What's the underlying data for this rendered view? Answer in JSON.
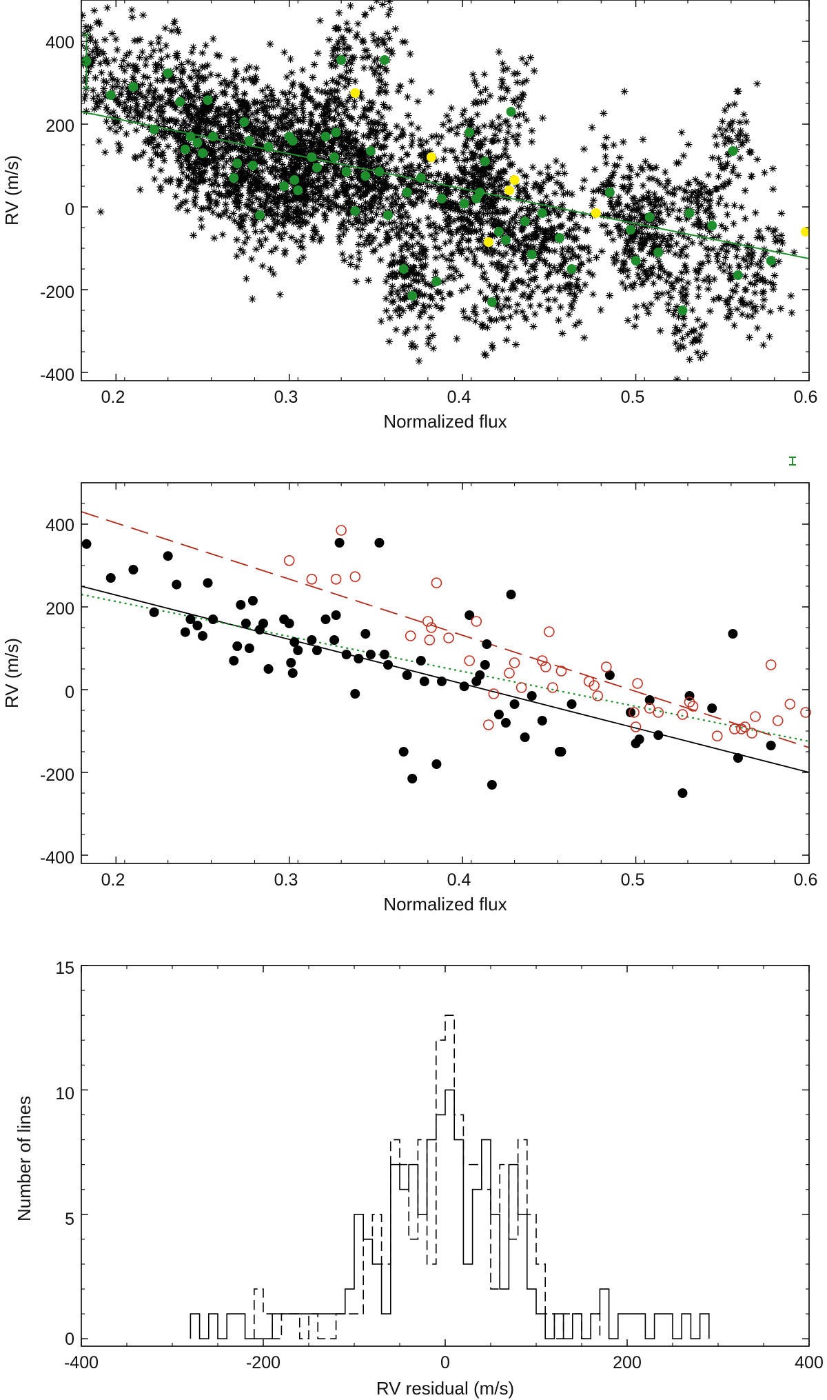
{
  "chart_data": [
    {
      "id": "top",
      "type": "scatter",
      "xlabel": "Normalized flux",
      "ylabel": "RV (m/s)",
      "xlim": [
        0.18,
        0.6
      ],
      "ylim": [
        -420,
        500
      ],
      "xticks": [
        0.2,
        0.3,
        0.4,
        0.5,
        0.6
      ],
      "xtick_labels": [
        "0.2",
        "0.3",
        "0.4",
        "0.5",
        "0.6"
      ],
      "yticks": [
        -400,
        -200,
        0,
        200,
        400
      ],
      "ytick_labels": [
        "-400",
        "-200",
        "0",
        "200",
        "400"
      ],
      "series": [
        {
          "name": "individual lines (asterisks)",
          "marker": "asterisk",
          "color": "#000000",
          "note": "dense cloud of several thousand points following the fitted trend",
          "count_estimate": 4000
        },
        {
          "name": "binned lines",
          "marker": "filled-circle",
          "color": "#1f8f2e",
          "x": [
            0.183,
            0.197,
            0.21,
            0.222,
            0.23,
            0.237,
            0.24,
            0.243,
            0.247,
            0.25,
            0.253,
            0.256,
            0.268,
            0.27,
            0.274,
            0.277,
            0.279,
            0.283,
            0.288,
            0.297,
            0.3,
            0.302,
            0.303,
            0.305,
            0.313,
            0.316,
            0.321,
            0.326,
            0.327,
            0.33,
            0.333,
            0.338,
            0.344,
            0.347,
            0.352,
            0.355,
            0.357,
            0.366,
            0.368,
            0.371,
            0.376,
            0.385,
            0.388,
            0.401,
            0.404,
            0.408,
            0.41,
            0.413,
            0.417,
            0.421,
            0.425,
            0.428,
            0.436,
            0.44,
            0.446,
            0.456,
            0.463,
            0.485,
            0.497,
            0.5,
            0.508,
            0.513,
            0.527,
            0.531,
            0.544,
            0.556,
            0.559,
            0.578
          ],
          "y": [
            352,
            270,
            290,
            187,
            323,
            254,
            139,
            170,
            155,
            130,
            258,
            170,
            70,
            105,
            205,
            160,
            100,
            -20,
            145,
            50,
            170,
            160,
            65,
            40,
            120,
            95,
            170,
            120,
            180,
            355,
            85,
            -10,
            75,
            135,
            85,
            355,
            -20,
            -150,
            35,
            -215,
            70,
            -180,
            20,
            8,
            180,
            20,
            35,
            110,
            -230,
            -60,
            -80,
            230,
            -35,
            -115,
            -15,
            -75,
            -150,
            35,
            -55,
            -130,
            -25,
            -110,
            -250,
            -15,
            -45,
            135,
            -165,
            -130
          ]
        },
        {
          "name": "highlighted lines",
          "marker": "filled-circle",
          "color": "#ffee00",
          "x": [
            0.338,
            0.382,
            0.415,
            0.427,
            0.43,
            0.477,
            0.598
          ],
          "y": [
            275,
            120,
            -85,
            40,
            65,
            -15,
            -60
          ]
        },
        {
          "name": "linear fit",
          "type": "line",
          "color": "#1f8f2e",
          "x": [
            0.18,
            0.6
          ],
          "y": [
            230,
            -125
          ]
        }
      ],
      "error_bar": {
        "color": "#1f8f2e",
        "x": 0.183,
        "y": 352,
        "yerr": 65
      }
    },
    {
      "id": "middle",
      "type": "scatter",
      "xlabel": "Normalized flux",
      "ylabel": "RV (m/s)",
      "xlim": [
        0.18,
        0.6
      ],
      "ylim": [
        -420,
        500
      ],
      "xticks": [
        0.2,
        0.3,
        0.4,
        0.5,
        0.6
      ],
      "xtick_labels": [
        "0.2",
        "0.3",
        "0.4",
        "0.5",
        "0.6"
      ],
      "yticks": [
        -400,
        -200,
        0,
        200,
        400
      ],
      "ytick_labels": [
        "-400",
        "-200",
        "0",
        "200",
        "400"
      ],
      "series": [
        {
          "name": "filled points",
          "marker": "filled-circle",
          "color": "#000000",
          "x": [
            0.183,
            0.197,
            0.21,
            0.222,
            0.23,
            0.235,
            0.24,
            0.243,
            0.247,
            0.25,
            0.253,
            0.256,
            0.268,
            0.27,
            0.272,
            0.275,
            0.277,
            0.279,
            0.283,
            0.285,
            0.288,
            0.297,
            0.3,
            0.301,
            0.302,
            0.303,
            0.305,
            0.313,
            0.316,
            0.321,
            0.326,
            0.327,
            0.329,
            0.333,
            0.338,
            0.34,
            0.344,
            0.347,
            0.352,
            0.355,
            0.357,
            0.366,
            0.368,
            0.371,
            0.376,
            0.378,
            0.385,
            0.388,
            0.401,
            0.404,
            0.408,
            0.41,
            0.413,
            0.414,
            0.417,
            0.421,
            0.425,
            0.428,
            0.43,
            0.436,
            0.44,
            0.446,
            0.456,
            0.457,
            0.463,
            0.485,
            0.497,
            0.5,
            0.502,
            0.508,
            0.513,
            0.527,
            0.531,
            0.544,
            0.556,
            0.559,
            0.578
          ],
          "y": [
            352,
            270,
            290,
            187,
            323,
            254,
            139,
            170,
            155,
            130,
            258,
            170,
            70,
            105,
            205,
            160,
            100,
            215,
            145,
            160,
            50,
            170,
            160,
            65,
            40,
            115,
            95,
            120,
            95,
            170,
            120,
            180,
            355,
            85,
            -10,
            75,
            135,
            85,
            355,
            85,
            60,
            -150,
            35,
            -215,
            70,
            20,
            -180,
            20,
            8,
            180,
            20,
            35,
            60,
            110,
            -230,
            -60,
            -80,
            230,
            -35,
            -115,
            -15,
            -75,
            -150,
            -150,
            -35,
            35,
            -55,
            -130,
            -120,
            -25,
            -110,
            -250,
            -15,
            -45,
            135,
            -165,
            -135
          ]
        },
        {
          "name": "open points",
          "marker": "open-circle",
          "color": "#c03020",
          "x": [
            0.3,
            0.313,
            0.327,
            0.33,
            0.338,
            0.37,
            0.38,
            0.381,
            0.382,
            0.385,
            0.392,
            0.404,
            0.408,
            0.415,
            0.418,
            0.427,
            0.43,
            0.434,
            0.446,
            0.448,
            0.45,
            0.452,
            0.457,
            0.473,
            0.476,
            0.478,
            0.483,
            0.499,
            0.5,
            0.501,
            0.508,
            0.513,
            0.527,
            0.531,
            0.533,
            0.547,
            0.557,
            0.561,
            0.563,
            0.567,
            0.569,
            0.578,
            0.582,
            0.589,
            0.598
          ],
          "y": [
            312,
            267,
            267,
            385,
            273,
            130,
            165,
            120,
            150,
            258,
            125,
            70,
            165,
            -85,
            -10,
            40,
            65,
            5,
            70,
            55,
            140,
            5,
            45,
            20,
            10,
            -15,
            55,
            -55,
            -90,
            15,
            -45,
            -55,
            -60,
            -30,
            -40,
            -112,
            -95,
            -95,
            -90,
            -105,
            -65,
            60,
            -75,
            -35,
            -55
          ]
        },
        {
          "name": "fit to filled points",
          "type": "line",
          "style": "solid",
          "color": "#000000",
          "x": [
            0.18,
            0.6
          ],
          "y": [
            250,
            -200
          ]
        },
        {
          "name": "fit to open points",
          "type": "line",
          "style": "dashed",
          "color": "#b02818",
          "x": [
            0.18,
            0.6
          ],
          "y": [
            430,
            -140
          ]
        },
        {
          "name": "fit to all points",
          "type": "line",
          "style": "dotted",
          "color": "#1f8f2e",
          "x": [
            0.18,
            0.6
          ],
          "y": [
            230,
            -125
          ]
        }
      ],
      "error_bar": {
        "color": "#1f8f2e",
        "note": "small error-bar symbol drawn above the top-right corner of the panel"
      }
    },
    {
      "id": "bottom",
      "type": "histogram",
      "xlabel": "RV residual (m/s)",
      "ylabel": "Number of lines",
      "xlim": [
        -400,
        400
      ],
      "ylim": [
        -0.3,
        15
      ],
      "xticks": [
        -400,
        -200,
        0,
        200,
        400
      ],
      "xtick_labels": [
        "-400",
        "-200",
        "0",
        "200",
        "400"
      ],
      "yticks": [
        0,
        5,
        10,
        15
      ],
      "ytick_labels": [
        "0",
        "5",
        "10",
        "15"
      ],
      "bin_width": 10,
      "series": [
        {
          "name": "solid histogram",
          "style": "solid",
          "color": "#000000",
          "bin_left": [
            -280,
            -270,
            -260,
            -250,
            -240,
            -230,
            -220,
            -210,
            -200,
            -190,
            -180,
            -170,
            -160,
            -150,
            -140,
            -130,
            -120,
            -110,
            -100,
            -90,
            -80,
            -70,
            -60,
            -50,
            -40,
            -30,
            -20,
            -10,
            0,
            10,
            20,
            30,
            40,
            50,
            60,
            70,
            80,
            90,
            100,
            110,
            120,
            130,
            140,
            150,
            160,
            170,
            180,
            190,
            200,
            210,
            220,
            230,
            240,
            250,
            260,
            270,
            280
          ],
          "counts": [
            1,
            0,
            1,
            0,
            1,
            1,
            0,
            0,
            0,
            1,
            1,
            1,
            1,
            1,
            1,
            1,
            1,
            2,
            5,
            4,
            3,
            1,
            7,
            6,
            7,
            5,
            8,
            9,
            10,
            8,
            3,
            6,
            8,
            5,
            2,
            7,
            5,
            2,
            1,
            0,
            1,
            0,
            1,
            0,
            1,
            2,
            0,
            1,
            1,
            1,
            0,
            1,
            1,
            0,
            1,
            0,
            1
          ]
        },
        {
          "name": "dashed histogram",
          "style": "dashed",
          "color": "#000000",
          "bin_left": [
            -210,
            -200,
            -190,
            -180,
            -170,
            -160,
            -150,
            -140,
            -130,
            -120,
            -110,
            -100,
            -90,
            -80,
            -70,
            -60,
            -50,
            -40,
            -30,
            -20,
            -10,
            0,
            10,
            20,
            30,
            40,
            50,
            60,
            70,
            80,
            90,
            100,
            110,
            120,
            130,
            140,
            150,
            160
          ],
          "counts": [
            2,
            1,
            0,
            1,
            1,
            0,
            1,
            0,
            0,
            1,
            1,
            1,
            4,
            5,
            3,
            8,
            7,
            4,
            8,
            3,
            12,
            13,
            9,
            7,
            7,
            6,
            2,
            7,
            4,
            8,
            5,
            3,
            1,
            0,
            1,
            1,
            0,
            1
          ]
        }
      ]
    }
  ]
}
